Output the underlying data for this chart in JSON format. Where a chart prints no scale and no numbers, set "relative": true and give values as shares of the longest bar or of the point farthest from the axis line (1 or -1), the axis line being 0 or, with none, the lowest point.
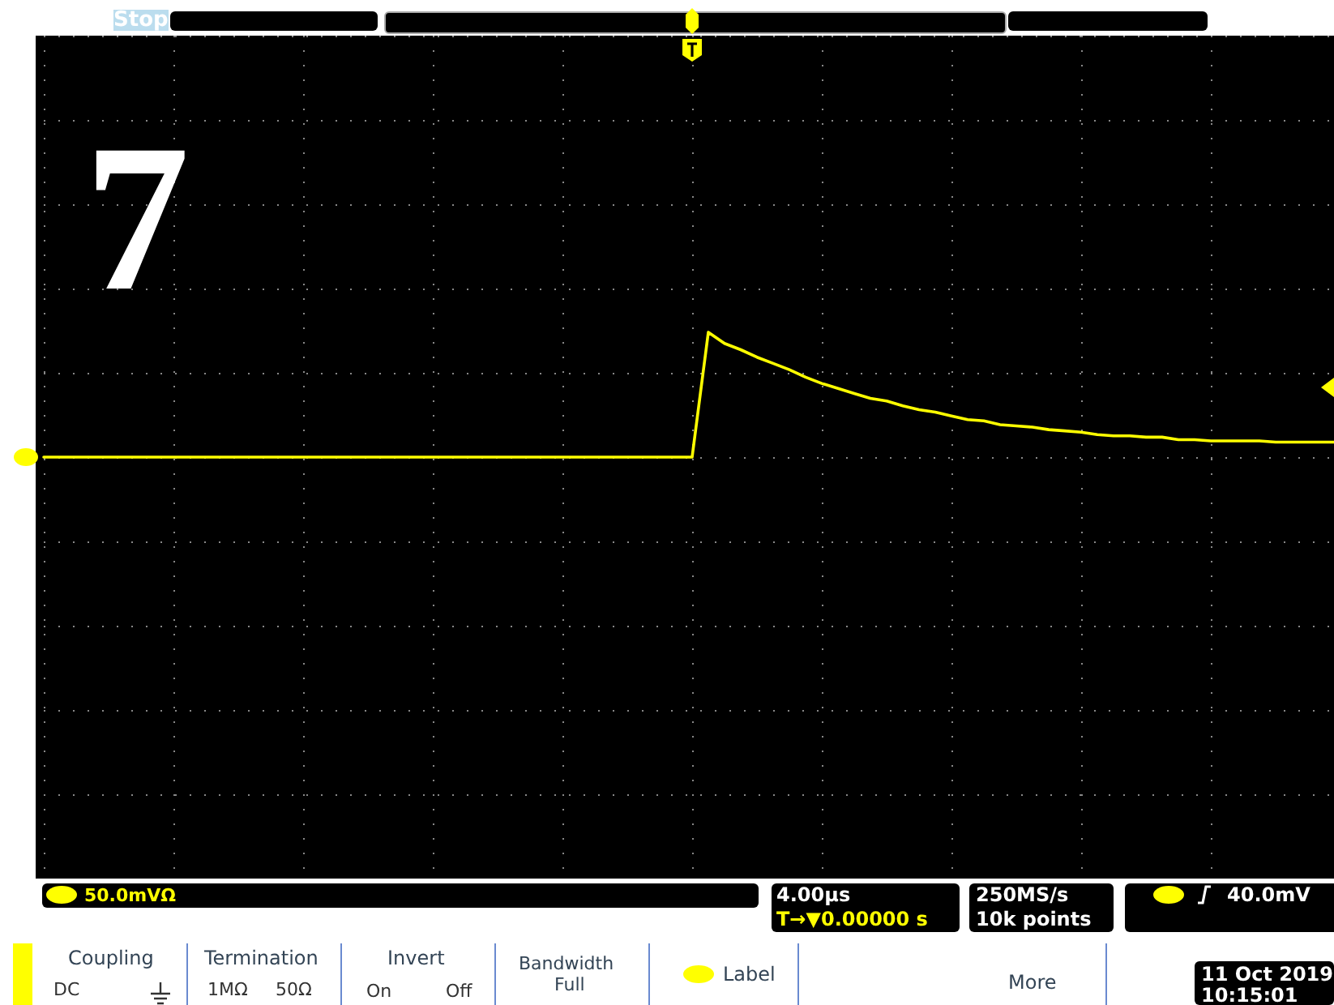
{
  "chart_data": {
    "type": "line",
    "relative": true,
    "grid": true,
    "marker": "none",
    "line_style": "solid",
    "categories": [
      null,
      null,
      null,
      null,
      null,
      null,
      null,
      null,
      null,
      null,
      null,
      null,
      null,
      null,
      null,
      null,
      null,
      null,
      null,
      null,
      null,
      null,
      null,
      null,
      null,
      null,
      null,
      null,
      null,
      null,
      null,
      null,
      null,
      null,
      null,
      null,
      null,
      null,
      null,
      null,
      null,
      null,
      null,
      null,
      null,
      null,
      null,
      null,
      null,
      null,
      null,
      null,
      null,
      null,
      null,
      null,
      null,
      null,
      null,
      null,
      null,
      null,
      null,
      null,
      null,
      null,
      null,
      null,
      null,
      null,
      null,
      null,
      null,
      null,
      null,
      null,
      null,
      null,
      null,
      null,
      null
    ],
    "series": [
      {
        "color": "#ffff00",
        "values": [
          0,
          0,
          0,
          0,
          0,
          0,
          0,
          0,
          0,
          0,
          0,
          0,
          0,
          0,
          0,
          0,
          0,
          0,
          0,
          0,
          0,
          0,
          0,
          0,
          0,
          0,
          0,
          0,
          0,
          0,
          0,
          0,
          0,
          0,
          0,
          0,
          0,
          0,
          0,
          0,
          0,
          1.0,
          0.91,
          0.86,
          0.8,
          0.75,
          0.7,
          0.64,
          0.59,
          0.55,
          0.51,
          0.47,
          0.45,
          0.41,
          0.38,
          0.36,
          0.33,
          0.3,
          0.29,
          0.26,
          0.25,
          0.24,
          0.22,
          0.21,
          0.2,
          0.18,
          0.17,
          0.17,
          0.16,
          0.16,
          0.14,
          0.14,
          0.13,
          0.13,
          0.13,
          0.13,
          0.12,
          0.12,
          0.12,
          0.12,
          0.12
        ]
      }
    ],
    "annotations": [
      "7",
      "Stop",
      "50.0mVΩ",
      "4.00µs",
      "T→▼0.00000 s",
      "250MS/s",
      "10k points",
      "40.0mV",
      "Coupling",
      "DC",
      "Termination",
      "1MΩ",
      "50Ω",
      "Invert",
      "On",
      "Off",
      "Bandwidth",
      "Full",
      "Label",
      "More",
      "11 Oct 2019",
      "10:15:01"
    ]
  }
}
